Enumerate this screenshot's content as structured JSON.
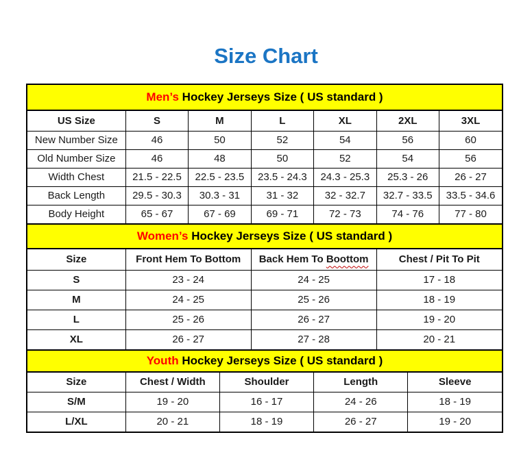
{
  "page_title": "Size Chart",
  "colors": {
    "title_blue": "#1B75C4",
    "banner_yellow": "#FFFF00",
    "accent_red": "#FF0000",
    "border_black": "#000000"
  },
  "spellcheck": {
    "word": "Boottom"
  },
  "sections": [
    {
      "id": "mens",
      "banner": {
        "highlight": "Men’s",
        "rest": " Hockey Jerseys Size ( US standard )"
      },
      "columns": [
        "US Size",
        "S",
        "M",
        "L",
        "XL",
        "2XL",
        "3XL"
      ],
      "rows": [
        [
          "New Number Size",
          "46",
          "50",
          "52",
          "54",
          "56",
          "60"
        ],
        [
          "Old Number Size",
          "46",
          "48",
          "50",
          "52",
          "54",
          "56"
        ],
        [
          "Width Chest",
          "21.5 - 22.5",
          "22.5 - 23.5",
          "23.5 - 24.3",
          "24.3 - 25.3",
          "25.3 - 26",
          "26 - 27"
        ],
        [
          "Back Length",
          "29.5 - 30.3",
          "30.3 - 31",
          "31 - 32",
          "32 - 32.7",
          "32.7 - 33.5",
          "33.5 - 34.6"
        ],
        [
          "Body Height",
          "65 - 67",
          "67 - 69",
          "69 - 71",
          "72 - 73",
          "74 - 76",
          "77 - 80"
        ]
      ]
    },
    {
      "id": "womens",
      "banner": {
        "highlight": "Women’s",
        "rest": " Hockey Jerseys Size ( US standard )"
      },
      "columns": [
        "Size",
        "Front Hem To Bottom",
        "Back Hem To Boottom",
        "Chest / Pit To Pit"
      ],
      "rows": [
        [
          "S",
          "23 - 24",
          "24 - 25",
          "17 - 18"
        ],
        [
          "M",
          "24 - 25",
          "25 - 26",
          "18 - 19"
        ],
        [
          "L",
          "25 - 26",
          "26 - 27",
          "19 - 20"
        ],
        [
          "XL",
          "26 - 27",
          "27 - 28",
          "20 - 21"
        ]
      ]
    },
    {
      "id": "youth",
      "banner": {
        "highlight": "Youth",
        "rest": " Hockey Jerseys Size ( US standard )"
      },
      "columns": [
        "Size",
        "Chest / Width",
        "Shoulder",
        "Length",
        "Sleeve"
      ],
      "rows": [
        [
          "S/M",
          "19 - 20",
          "16 - 17",
          "24 - 26",
          "18 - 19"
        ],
        [
          "L/XL",
          "20 - 21",
          "18 - 19",
          "26 - 27",
          "19 - 20"
        ]
      ]
    }
  ]
}
